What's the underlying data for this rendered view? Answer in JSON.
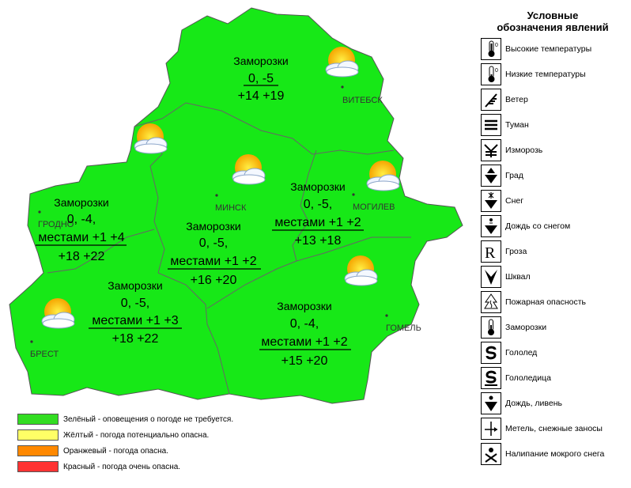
{
  "regions": [
    {
      "id": "vitebsk",
      "line1": "Заморозки",
      "line2": "0, -5",
      "line3": "",
      "line4": "+14 +19",
      "city": "ВИТЕБСК"
    },
    {
      "id": "grodno",
      "line1": "Заморозки",
      "line2": "0, -4,",
      "line3": "местами +1 +4",
      "line4": "+18 +22",
      "city": "ГРОДНО"
    },
    {
      "id": "minsk",
      "line1": "Заморозки",
      "line2": "0, -5,",
      "line3": "местами +1 +2",
      "line4": "+16 +20",
      "city": "МИНСК"
    },
    {
      "id": "mogilev",
      "line1": "Заморозки",
      "line2": "0, -5,",
      "line3": "местами +1 +2",
      "line4": "+13 +18",
      "city": "МОГИЛЕВ"
    },
    {
      "id": "brest",
      "line1": "Заморозки",
      "line2": "0, -5,",
      "line3": "местами +1 +3",
      "line4": "+18 +22",
      "city": "БРЕСТ"
    },
    {
      "id": "gomel",
      "line1": "Заморозки",
      "line2": "0, -4,",
      "line3": "местами +1 +2",
      "line4": "+15 +20",
      "city": "ГОМЕЛЬ"
    }
  ],
  "alert_legend": [
    {
      "color": "#33dd22",
      "label": "Зелёный - оповещения о погоде не требуется."
    },
    {
      "color": "#ffff66",
      "label": "Жёлтый - погода потенциально опасна."
    },
    {
      "color": "#ff8800",
      "label": "Оранжевый - погода опасна."
    },
    {
      "color": "#ff3333",
      "label": "Красный - погода очень опасна."
    }
  ],
  "phenomena_legend": {
    "title_line1": "Условные",
    "title_line2": "обозначения явлений",
    "items": [
      {
        "icon": "thermometer-high-icon",
        "label": "Высокие температуры"
      },
      {
        "icon": "thermometer-low-icon",
        "label": "Низкие температуры"
      },
      {
        "icon": "wind-icon",
        "label": "Ветер"
      },
      {
        "icon": "fog-icon",
        "label": "Туман"
      },
      {
        "icon": "rime-icon",
        "label": "Изморозь"
      },
      {
        "icon": "hail-icon",
        "label": "Град"
      },
      {
        "icon": "snow-icon",
        "label": "Снег"
      },
      {
        "icon": "sleet-icon",
        "label": "Дождь со снегом"
      },
      {
        "icon": "thunderstorm-icon",
        "label": "Гроза"
      },
      {
        "icon": "squall-icon",
        "label": "Шквал"
      },
      {
        "icon": "fire-danger-icon",
        "label": "Пожарная опасность"
      },
      {
        "icon": "frost-icon",
        "label": "Заморозки"
      },
      {
        "icon": "glaze-ice-icon",
        "label": "Гололед"
      },
      {
        "icon": "black-ice-icon",
        "label": "Гололедица"
      },
      {
        "icon": "rain-shower-icon",
        "label": "Дождь, ливень"
      },
      {
        "icon": "blizzard-icon",
        "label": "Метель, снежные заносы"
      },
      {
        "icon": "wet-snow-icon",
        "label": "Налипание мокрого снега"
      }
    ]
  },
  "colors": {
    "region_fill": "#17e817",
    "border": "#555555"
  }
}
